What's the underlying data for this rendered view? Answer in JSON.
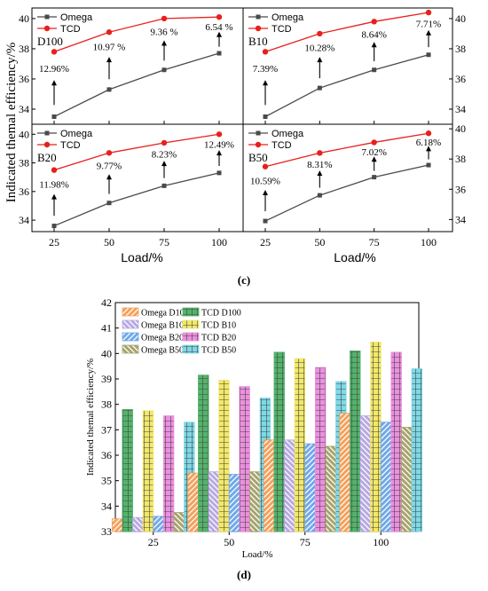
{
  "figure_c": {
    "caption": "(c)",
    "ylabel": "Indicated themal efficiency/%",
    "xlabel": "Load/%",
    "x_ticks": [
      "25",
      "50",
      "75",
      "100"
    ]
  },
  "figure_d": {
    "caption": "(d)",
    "ylabel": "Indicated themal efficiency/%",
    "xlabel": "Load/%"
  },
  "colors": {
    "omega": "#4a4a4a",
    "tcd": "#e8201c",
    "omega_d100": "#f5a05a",
    "tcd_d100": "#54b36b",
    "omega_b10": "#b7a8e2",
    "tcd_b10": "#f2e86a",
    "omega_b20": "#6fa8ea",
    "tcd_b20": "#ec8fe0",
    "omega_b50": "#a7a36c",
    "tcd_b50": "#7ed9e6"
  },
  "chart_data": [
    {
      "type": "line",
      "panel": "D100",
      "x": [
        25,
        50,
        75,
        100
      ],
      "series": [
        {
          "name": "Omega",
          "values": [
            33.5,
            35.3,
            36.6,
            37.7
          ]
        },
        {
          "name": "TCD",
          "values": [
            37.8,
            39.1,
            40.0,
            40.1
          ]
        }
      ],
      "annotations": [
        "12.96%",
        "10.97 %",
        "9.36 %",
        "6.54 %"
      ],
      "ylim": [
        33,
        40.7
      ],
      "y_ticks": [
        34,
        36,
        38,
        40
      ],
      "y_axis_side": "left",
      "legend": "top-left"
    },
    {
      "type": "line",
      "panel": "B10",
      "x": [
        25,
        50,
        75,
        100
      ],
      "series": [
        {
          "name": "Omega",
          "values": [
            33.5,
            35.4,
            36.6,
            37.6
          ]
        },
        {
          "name": "TCD",
          "values": [
            37.8,
            39.0,
            39.8,
            40.4
          ]
        }
      ],
      "annotations": [
        "7.39%",
        "10.28%",
        "8.64%",
        "7.71%"
      ],
      "ylim": [
        33,
        40.7
      ],
      "y_ticks": [
        34,
        36,
        38,
        40
      ],
      "y_axis_side": "right",
      "legend": "top-left"
    },
    {
      "type": "line",
      "panel": "B20",
      "x": [
        25,
        50,
        75,
        100
      ],
      "series": [
        {
          "name": "Omega",
          "values": [
            33.6,
            35.2,
            36.4,
            37.3
          ]
        },
        {
          "name": "TCD",
          "values": [
            37.5,
            38.7,
            39.4,
            40.0
          ]
        }
      ],
      "annotations": [
        "11.98%",
        "9.77%",
        "8.23%",
        "12.49%"
      ],
      "ylim": [
        33.2,
        40.7
      ],
      "y_ticks": [
        34,
        36,
        38,
        40
      ],
      "y_axis_side": "left",
      "legend": "top-left"
    },
    {
      "type": "line",
      "panel": "B50",
      "x": [
        25,
        50,
        75,
        100
      ],
      "series": [
        {
          "name": "Omega",
          "values": [
            33.9,
            35.6,
            36.8,
            37.6
          ]
        },
        {
          "name": "TCD",
          "values": [
            37.5,
            38.4,
            39.1,
            39.7
          ]
        }
      ],
      "annotations": [
        "10.59%",
        "8.31%",
        "7.02%",
        "6.18%"
      ],
      "ylim": [
        33.2,
        40.3
      ],
      "y_ticks": [
        34,
        36,
        38,
        40
      ],
      "y_axis_side": "right",
      "legend": "top-left"
    },
    {
      "type": "bar",
      "categories": [
        "25",
        "50",
        "75",
        "100"
      ],
      "series": [
        {
          "name": "Omega D100",
          "values": [
            33.5,
            35.3,
            36.6,
            37.65
          ]
        },
        {
          "name": "TCD D100",
          "values": [
            37.8,
            39.15,
            40.05,
            40.1
          ]
        },
        {
          "name": "Omega B10",
          "values": [
            33.55,
            35.35,
            36.6,
            37.55
          ]
        },
        {
          "name": "TCD B10",
          "values": [
            37.75,
            38.95,
            39.8,
            40.45
          ]
        },
        {
          "name": "Omega B20",
          "values": [
            33.6,
            35.25,
            36.45,
            37.3
          ]
        },
        {
          "name": "TCD B20",
          "values": [
            37.55,
            38.7,
            39.45,
            40.05
          ]
        },
        {
          "name": "Omega B50",
          "values": [
            33.75,
            35.35,
            36.35,
            37.1
          ]
        },
        {
          "name": "TCD B50",
          "values": [
            37.3,
            38.25,
            38.9,
            39.4
          ]
        }
      ],
      "ylim": [
        33,
        42
      ],
      "y_ticks": [
        33,
        34,
        35,
        36,
        37,
        38,
        39,
        40,
        41,
        42
      ],
      "legend": "top-left"
    }
  ]
}
